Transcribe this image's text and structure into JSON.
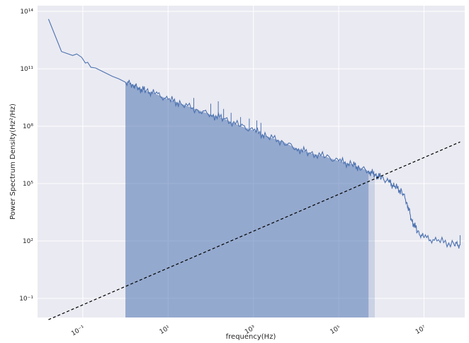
{
  "chart_data": {
    "type": "line",
    "xlabel": "frequency(Hz)",
    "ylabel": "Power Spectrum Density(Hz²/Hz)",
    "x_scale": "log",
    "y_scale": "log",
    "xlim": [
      0.0087,
      90000000
    ],
    "ylim": [
      0.01,
      200000000000000
    ],
    "grid": true,
    "x_ticks": [
      {
        "value": 0.1,
        "label": "10⁻¹"
      },
      {
        "value": 10,
        "label": "10¹"
      },
      {
        "value": 1000,
        "label": "10³"
      },
      {
        "value": 100000,
        "label": "10⁵"
      },
      {
        "value": 10000000,
        "label": "10⁷"
      }
    ],
    "y_ticks": [
      {
        "value": 0.1,
        "label": "10⁻¹"
      },
      {
        "value": 100,
        "label": "10²"
      },
      {
        "value": 100000,
        "label": "10⁵"
      },
      {
        "value": 100000000,
        "label": "10⁸"
      },
      {
        "value": 100000000000,
        "label": "10¹¹"
      },
      {
        "value": 100000000000000,
        "label": "10¹⁴"
      }
    ],
    "series": [
      {
        "style": "solid",
        "color": "#4c72b0",
        "x": [
          0.0157,
          0.0317,
          0.058,
          0.072,
          0.094,
          0.115,
          0.13,
          0.155,
          0.2,
          0.3,
          0.5,
          0.7,
          1.0,
          1.5,
          2.0,
          3.0,
          5.0,
          10,
          20,
          50,
          100,
          200,
          500,
          1000,
          2000,
          5000,
          10000,
          20000,
          50000,
          100000,
          200000,
          300000,
          500000,
          700000,
          1000000,
          1500000,
          2000000,
          3000000,
          4000000,
          5000000,
          7000000,
          10000000,
          20000000,
          50000000,
          70000000
        ],
        "y": [
          40000000000000,
          800000000000,
          500000000000,
          600000000000,
          400000000000,
          200000000000,
          220000000000,
          120000000000,
          110000000000,
          70000000000,
          40000000000,
          30000000000,
          20000000000,
          15000000000,
          10000000000,
          7000000000,
          5000000000,
          2500000000,
          1500000000,
          700000000,
          400000000,
          250000000,
          100000000,
          60000000,
          30000000,
          15000000,
          7000000,
          4000000,
          2500000,
          1500000,
          1000000,
          700000,
          450000,
          300000,
          200000,
          120000,
          70000,
          40000,
          10000,
          1500,
          300,
          150,
          100,
          70,
          60
        ]
      },
      {
        "style": "dashed",
        "color": "#000000",
        "x": [
          0.0157,
          70000000
        ],
        "y": [
          0.0077,
          15000000
        ]
      }
    ],
    "spikes": [
      {
        "x": 40,
        "y": 3000000000
      },
      {
        "x": 100,
        "y": 1500000000
      },
      {
        "x": 150,
        "y": 2000000000
      },
      {
        "x": 200,
        "y": 800000000
      },
      {
        "x": 300,
        "y": 500000000
      },
      {
        "x": 500,
        "y": 300000000
      },
      {
        "x": 800,
        "y": 250000000
      },
      {
        "x": 1200,
        "y": 200000000
      },
      {
        "x": 1500,
        "y": 150000000
      },
      {
        "x": 70000000,
        "y": 200
      }
    ],
    "shaded_region": {
      "x_start": 1.0,
      "x_end": 500000,
      "fade_end": 700000,
      "color": "#4c72b0",
      "opacity": 0.55
    }
  }
}
